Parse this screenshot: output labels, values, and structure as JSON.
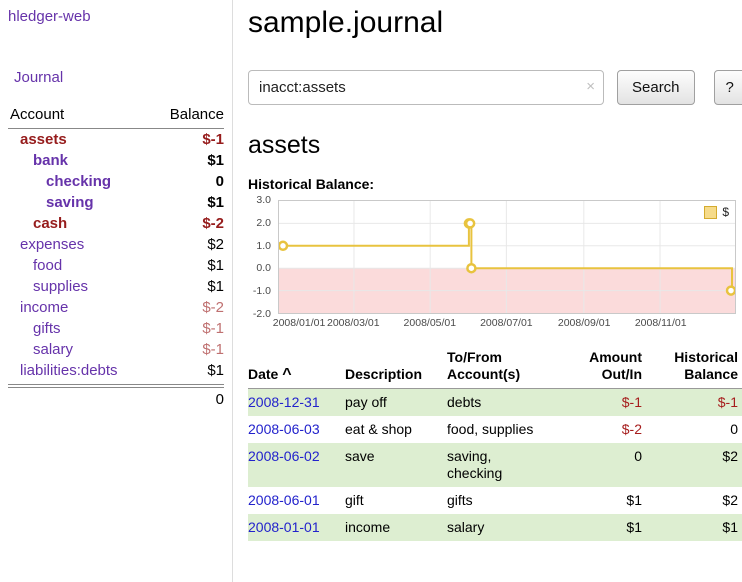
{
  "colors": {
    "brand_purple": "#6633aa",
    "negative_dark": "#961c1c",
    "negative_soft": "#bf7070",
    "negative": "#a61d1d",
    "link_blue": "#2222cc",
    "row_green": "#ddeed1",
    "chart_line": "#e8c33f",
    "chart_negative_fill": "#fbdbdb"
  },
  "sidebar": {
    "app_link": "hledger-web",
    "journal_link": "Journal",
    "table": {
      "account_header": "Account",
      "balance_header": "Balance",
      "accounts": [
        {
          "name": "assets",
          "balance": "$-1",
          "depth": 0,
          "bold": true,
          "name_negative": true
        },
        {
          "name": "bank",
          "balance": "$1",
          "depth": 1,
          "bold": true
        },
        {
          "name": "checking",
          "balance": "0",
          "depth": 2,
          "bold": true
        },
        {
          "name": "saving",
          "balance": "$1",
          "depth": 2,
          "bold": true
        },
        {
          "name": "cash",
          "balance": "$-2",
          "depth": 1,
          "bold": true,
          "name_negative": true
        },
        {
          "name": "expenses",
          "balance": "$2",
          "depth": 0
        },
        {
          "name": "food",
          "balance": "$1",
          "depth": 1
        },
        {
          "name": "supplies",
          "balance": "$1",
          "depth": 1
        },
        {
          "name": "income",
          "balance": "$-2",
          "depth": 0
        },
        {
          "name": "gifts",
          "balance": "$-1",
          "depth": 1
        },
        {
          "name": "salary",
          "balance": "$-1",
          "depth": 1
        },
        {
          "name": "liabilities:debts",
          "balance": "$1",
          "depth": 0
        }
      ],
      "total": "0"
    }
  },
  "main": {
    "title": "sample.journal",
    "search": {
      "value": "inacct:assets",
      "clear_icon": "×",
      "button": "Search",
      "help_button": "?"
    },
    "section_title": "assets",
    "chart_label": "Historical Balance:",
    "register": {
      "headers": {
        "date": "Date",
        "sort_indicator": "^",
        "description": "Description",
        "accounts": "To/From\nAccount(s)",
        "amount": "Amount\nOut/In",
        "balance": "Historical\nBalance"
      },
      "rows": [
        {
          "date": "2008-12-31",
          "description": "pay off",
          "accounts": "debts",
          "amount": "$-1",
          "balance": "$-1"
        },
        {
          "date": "2008-06-03",
          "description": "eat & shop",
          "accounts": "food, supplies",
          "amount": "$-2",
          "balance": "0"
        },
        {
          "date": "2008-06-02",
          "description": "save",
          "accounts": "saving,\nchecking",
          "amount": "0",
          "balance": "$2"
        },
        {
          "date": "2008-06-01",
          "description": "gift",
          "accounts": "gifts",
          "amount": "$1",
          "balance": "$2"
        },
        {
          "date": "2008-01-01",
          "description": "income",
          "accounts": "salary",
          "amount": "$1",
          "balance": "$1"
        }
      ]
    }
  },
  "chart_data": {
    "type": "line",
    "step": true,
    "title": "Historical Balance",
    "series": [
      {
        "name": "$",
        "points": [
          [
            "2008-01-01",
            1
          ],
          [
            "2008-06-01",
            2
          ],
          [
            "2008-06-02",
            2
          ],
          [
            "2008-06-03",
            0
          ],
          [
            "2008-12-31",
            -1
          ]
        ]
      }
    ],
    "x_range": [
      "2008-01-01",
      "2008-12-31"
    ],
    "xtick_dates": [
      "2008-01-01",
      "2008-03-01",
      "2008-05-01",
      "2008-07-01",
      "2008-09-01",
      "2008-11-01"
    ],
    "xtick_labels": [
      "2008/01/01",
      "2008/03/01",
      "2008/05/01",
      "2008/07/01",
      "2008/09/01",
      "2008/11/01"
    ],
    "ylim": [
      -2.0,
      3.0
    ],
    "yticks": [
      3.0,
      2.0,
      1.0,
      0.0,
      -1.0,
      -2.0
    ],
    "grid": true,
    "legend_position": "top-right"
  }
}
